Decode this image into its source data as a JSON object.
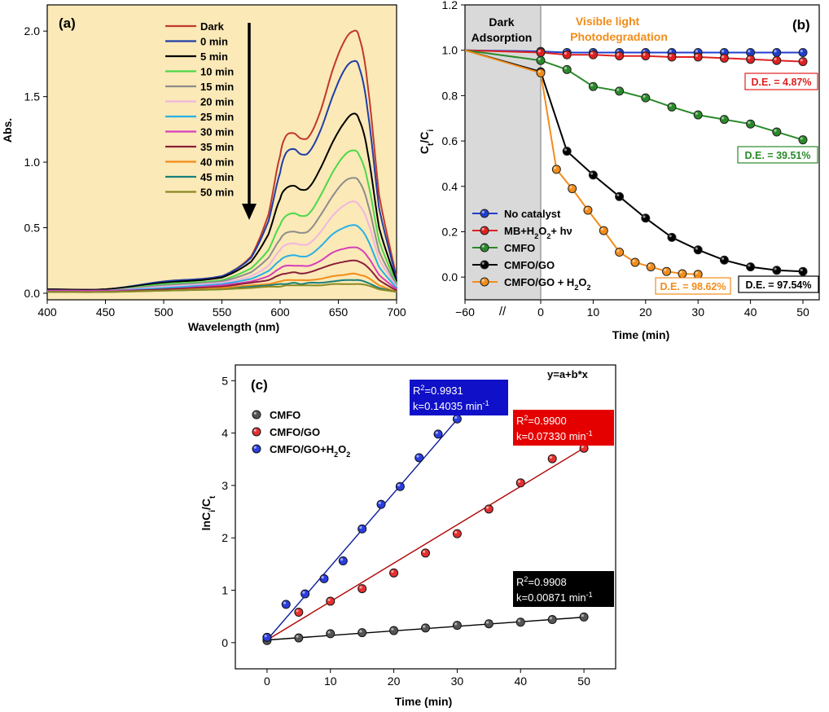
{
  "chart_data": [
    {
      "type": "line",
      "panel": "(a)",
      "xlabel": "Wavelength (nm)",
      "ylabel": "Abs.",
      "xlim": [
        400,
        700
      ],
      "ylim": [
        -0.05,
        2.2
      ],
      "x_ticks": [
        400,
        450,
        500,
        550,
        600,
        650,
        700
      ],
      "y_ticks": [
        0.0,
        0.5,
        1.0,
        1.5,
        2.0
      ],
      "y_tick_labels": [
        "0.0",
        "0.5",
        "1.0",
        "1.5",
        "2.0"
      ],
      "background": "#fbe9b7",
      "x": [
        400,
        450,
        500,
        550,
        575,
        590,
        600,
        605,
        612,
        618,
        625,
        635,
        645,
        655,
        663,
        668,
        675,
        685,
        700
      ],
      "series": [
        {
          "name": "Dark",
          "color": "#c0392b",
          "values": [
            0.03,
            0.03,
            0.09,
            0.13,
            0.28,
            0.6,
            1.05,
            1.2,
            1.22,
            1.18,
            1.2,
            1.4,
            1.7,
            1.92,
            2.0,
            1.95,
            1.6,
            0.75,
            0.12
          ]
        },
        {
          "name": "0 min",
          "color": "#1f3ea8",
          "values": [
            0.03,
            0.03,
            0.09,
            0.13,
            0.27,
            0.55,
            0.92,
            1.07,
            1.1,
            1.06,
            1.08,
            1.25,
            1.5,
            1.7,
            1.77,
            1.72,
            1.4,
            0.65,
            0.11
          ]
        },
        {
          "name": "5 min",
          "color": "#000000",
          "values": [
            0.03,
            0.03,
            0.08,
            0.12,
            0.24,
            0.45,
            0.72,
            0.8,
            0.82,
            0.79,
            0.81,
            0.96,
            1.15,
            1.3,
            1.37,
            1.32,
            1.08,
            0.5,
            0.09
          ]
        },
        {
          "name": "10 min",
          "color": "#4cd84c",
          "values": [
            0.02,
            0.02,
            0.07,
            0.1,
            0.19,
            0.33,
            0.52,
            0.59,
            0.61,
            0.59,
            0.61,
            0.75,
            0.92,
            1.05,
            1.09,
            1.05,
            0.86,
            0.4,
            0.07
          ]
        },
        {
          "name": "15 min",
          "color": "#8c8c8c",
          "values": [
            0.02,
            0.02,
            0.06,
            0.09,
            0.16,
            0.27,
            0.41,
            0.46,
            0.47,
            0.46,
            0.48,
            0.6,
            0.74,
            0.85,
            0.88,
            0.85,
            0.69,
            0.32,
            0.06
          ]
        },
        {
          "name": "20 min",
          "color": "#f0b6e0",
          "values": [
            0.02,
            0.02,
            0.05,
            0.08,
            0.13,
            0.21,
            0.33,
            0.37,
            0.38,
            0.37,
            0.38,
            0.47,
            0.59,
            0.67,
            0.7,
            0.67,
            0.55,
            0.26,
            0.05
          ]
        },
        {
          "name": "25 min",
          "color": "#27b0e6",
          "values": [
            0.02,
            0.02,
            0.04,
            0.07,
            0.11,
            0.17,
            0.25,
            0.28,
            0.29,
            0.28,
            0.29,
            0.36,
            0.45,
            0.5,
            0.52,
            0.5,
            0.41,
            0.2,
            0.04
          ]
        },
        {
          "name": "30 min",
          "color": "#d63fb8",
          "values": [
            0.02,
            0.02,
            0.03,
            0.06,
            0.09,
            0.13,
            0.19,
            0.21,
            0.21,
            0.21,
            0.21,
            0.25,
            0.31,
            0.34,
            0.35,
            0.34,
            0.28,
            0.14,
            0.03
          ]
        },
        {
          "name": "35 min",
          "color": "#8a1f3a",
          "values": [
            0.01,
            0.01,
            0.03,
            0.05,
            0.08,
            0.1,
            0.14,
            0.15,
            0.16,
            0.15,
            0.16,
            0.19,
            0.22,
            0.24,
            0.25,
            0.24,
            0.2,
            0.1,
            0.02
          ]
        },
        {
          "name": "40 min",
          "color": "#f28c1a",
          "values": [
            0.01,
            0.01,
            0.02,
            0.04,
            0.06,
            0.07,
            0.09,
            0.1,
            0.1,
            0.1,
            0.1,
            0.11,
            0.13,
            0.14,
            0.15,
            0.14,
            0.12,
            0.06,
            0.01
          ]
        },
        {
          "name": "45 min",
          "color": "#1a7f7a",
          "values": [
            0.01,
            0.01,
            0.02,
            0.03,
            0.05,
            0.06,
            0.07,
            0.07,
            0.08,
            0.07,
            0.08,
            0.08,
            0.09,
            0.1,
            0.1,
            0.1,
            0.08,
            0.04,
            0.01
          ]
        },
        {
          "name": "50 min",
          "color": "#8a8a22",
          "values": [
            0.01,
            0.01,
            0.02,
            0.03,
            0.04,
            0.05,
            0.05,
            0.06,
            0.06,
            0.06,
            0.06,
            0.06,
            0.07,
            0.07,
            0.07,
            0.07,
            0.06,
            0.03,
            0.01
          ]
        }
      ],
      "annotations": [
        "arrow pointing downward: absorbance decreases with time"
      ]
    },
    {
      "type": "line",
      "panel": "(b)",
      "xlabel": "Time (min)",
      "ylabel": "Ct/Ci",
      "ylim": [
        -0.1,
        1.2
      ],
      "y_ticks": [
        0.0,
        0.2,
        0.4,
        0.6,
        0.8,
        1.0,
        1.2
      ],
      "y_tick_labels": [
        "0.0",
        "0.2",
        "0.4",
        "0.6",
        "0.8",
        "1.0",
        "1.2"
      ],
      "x_tick_labels": [
        "−60",
        "0",
        "10",
        "20",
        "30",
        "40",
        "50"
      ],
      "x_ticks": [
        -60,
        0,
        10,
        20,
        30,
        40,
        50
      ],
      "axis_break": "//",
      "shaded_region": {
        "from": -60,
        "to": 0,
        "label_line1": "Dark",
        "label_line2": "Adsorption",
        "color": "#d9d9d9"
      },
      "region_label": {
        "line1": "Visible light",
        "line2": "Photodegradation",
        "color": "#f28c1a"
      },
      "series": [
        {
          "name": "No catalyst",
          "color": "#1f3ecf",
          "x": [
            -60,
            0,
            5,
            10,
            15,
            20,
            25,
            30,
            35,
            40,
            45,
            50
          ],
          "values": [
            1.0,
            0.995,
            0.99,
            0.99,
            0.99,
            0.99,
            0.99,
            0.99,
            0.99,
            0.99,
            0.99,
            0.99
          ]
        },
        {
          "name": "MB+H2O2+ hv",
          "color": "#e02020",
          "x": [
            -60,
            0,
            5,
            10,
            15,
            20,
            25,
            30,
            35,
            40,
            45,
            50
          ],
          "values": [
            1.0,
            0.99,
            0.98,
            0.98,
            0.975,
            0.975,
            0.97,
            0.97,
            0.965,
            0.96,
            0.955,
            0.95
          ]
        },
        {
          "name": "CMFO",
          "color": "#2a8a2a",
          "x": [
            -60,
            0,
            5,
            10,
            15,
            20,
            25,
            30,
            35,
            40,
            45,
            50
          ],
          "values": [
            1.0,
            0.955,
            0.915,
            0.84,
            0.82,
            0.79,
            0.75,
            0.715,
            0.695,
            0.675,
            0.64,
            0.605
          ]
        },
        {
          "name": "CMFO/GO",
          "color": "#000000",
          "x": [
            -60,
            0,
            5,
            10,
            15,
            20,
            25,
            30,
            35,
            40,
            45,
            50
          ],
          "values": [
            1.0,
            0.905,
            0.555,
            0.45,
            0.355,
            0.26,
            0.175,
            0.12,
            0.075,
            0.045,
            0.03,
            0.025
          ]
        },
        {
          "name": "CMFO/GO + H2O2",
          "color": "#f28c1a",
          "x": [
            -60,
            0,
            3,
            6,
            9,
            12,
            15,
            18,
            21,
            24,
            27,
            30
          ],
          "values": [
            1.0,
            0.9,
            0.475,
            0.39,
            0.295,
            0.205,
            0.11,
            0.065,
            0.045,
            0.025,
            0.015,
            0.012
          ]
        }
      ],
      "legend": [
        {
          "label": "No catalyst",
          "sub": "",
          "tail": ""
        },
        {
          "label": "MB+H",
          "sub": "2",
          "mid": "O",
          "sub2": "2",
          "tail": "+ hν"
        },
        {
          "label": "CMFO",
          "sub": "",
          "tail": ""
        },
        {
          "label": "CMFO/GO",
          "sub": "",
          "tail": ""
        },
        {
          "label": "CMFO/GO + H",
          "sub": "2",
          "mid": "O",
          "sub2": "2",
          "tail": ""
        }
      ],
      "de_labels": [
        {
          "text": "D.E. = 4.87%",
          "color": "#e02020"
        },
        {
          "text": "D.E. = 39.51%",
          "color": "#2a8a2a"
        },
        {
          "text": "D.E. = 98.62%",
          "color": "#f28c1a"
        },
        {
          "text": "D.E. = 97.54%",
          "color": "#000000"
        }
      ]
    },
    {
      "type": "scatter",
      "panel": "(c)",
      "xlabel": "Time (min)",
      "ylabel": "lnCi/Ct",
      "xlim": [
        -5,
        55
      ],
      "ylim": [
        -0.5,
        5.3
      ],
      "x_ticks": [
        0,
        10,
        20,
        30,
        40,
        50
      ],
      "y_ticks": [
        0,
        1,
        2,
        3,
        4,
        5
      ],
      "equation": "y=a+b*x",
      "series": [
        {
          "name": "CMFO",
          "color": "#000000",
          "fill": "#555555",
          "x": [
            0,
            5,
            10,
            15,
            20,
            25,
            30,
            35,
            40,
            45,
            50
          ],
          "values": [
            0.04,
            0.09,
            0.17,
            0.19,
            0.23,
            0.28,
            0.33,
            0.36,
            0.39,
            0.44,
            0.49
          ],
          "fit": {
            "a": 0.05,
            "b": 0.00871,
            "x_end": 50
          },
          "box": {
            "r2": "0.9908",
            "k": "k=0.00871 min",
            "bg": "#000000"
          }
        },
        {
          "name": "CMFO/GO",
          "color": "#b00000",
          "fill": "#e53030",
          "x": [
            0,
            5,
            10,
            15,
            20,
            25,
            30,
            35,
            40,
            45,
            50
          ],
          "values": [
            0.1,
            0.58,
            0.79,
            1.03,
            1.33,
            1.71,
            2.08,
            2.55,
            3.05,
            3.51,
            3.71
          ],
          "fit": {
            "a": 0.05,
            "b": 0.0733,
            "x_end": 50
          },
          "box": {
            "r2": "0.9900",
            "k": "k=0.07330 min",
            "bg": "#e50000"
          }
        },
        {
          "name": "CMFO/GO+H2O2",
          "color": "#0a1a9a",
          "fill": "#2a3ee0",
          "x": [
            0,
            3,
            6,
            9,
            12,
            15,
            18,
            21,
            24,
            27,
            30
          ],
          "values": [
            0.1,
            0.73,
            0.93,
            1.22,
            1.56,
            2.17,
            2.64,
            2.98,
            3.53,
            3.98,
            4.27
          ],
          "fit": {
            "a": 0.05,
            "b": 0.14035,
            "x_end": 30
          },
          "box": {
            "r2": "0.9931",
            "k": "k=0.14035 min",
            "bg": "#1010c8"
          }
        }
      ]
    }
  ],
  "labels": {
    "r2_prefix": "R",
    "r2_sup": "2",
    "r2_eq": "=",
    "k_sup": "-1",
    "ct_main": "C",
    "ct_sub1": "t",
    "ct_sep": "/C",
    "ct_sub2": "i",
    "ln_main": "lnC",
    "ln_sub1": "i",
    "ln_sep": "/C",
    "ln_sub2": "t",
    "cmfo_go_h2o2_main": "CMFO/GO+H",
    "sub_two": "2",
    "o_letter": "O"
  }
}
